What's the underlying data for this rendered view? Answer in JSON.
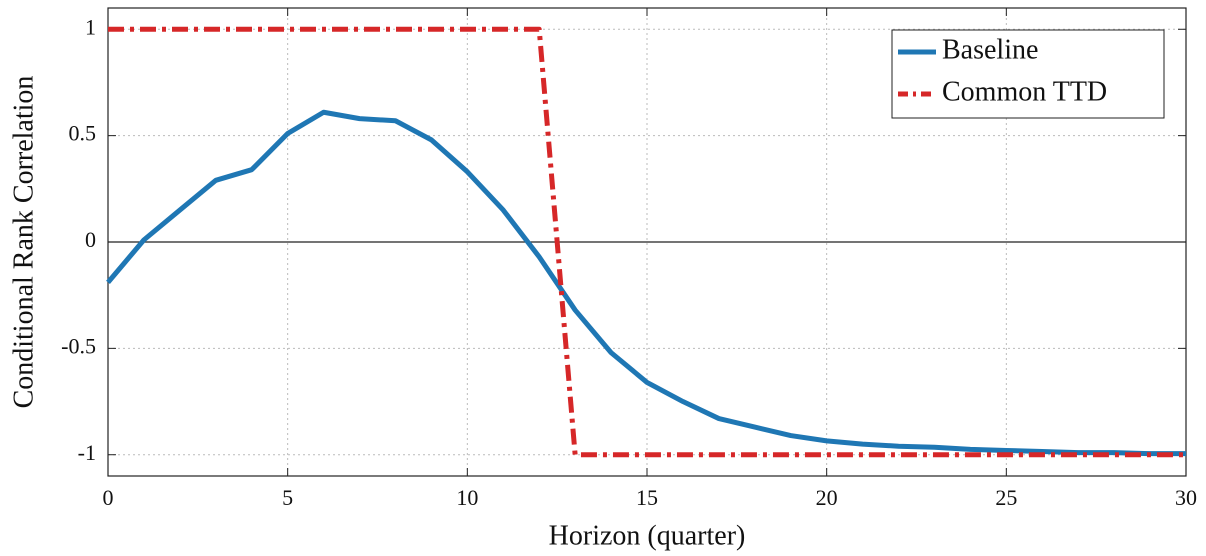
{
  "chart_data": {
    "type": "line",
    "x_label": "Horizon (quarter)",
    "y_label": "Conditional Rank Correlation",
    "x": [
      0,
      1,
      2,
      3,
      4,
      5,
      6,
      7,
      8,
      9,
      10,
      11,
      12,
      13,
      14,
      15,
      16,
      17,
      18,
      19,
      20,
      21,
      22,
      23,
      24,
      25,
      26,
      27,
      28,
      29,
      30
    ],
    "series": [
      {
        "name": "Baseline",
        "color": "#1f77b4",
        "style": "solid",
        "values": [
          -0.19,
          0.01,
          0.15,
          0.29,
          0.34,
          0.51,
          0.61,
          0.58,
          0.57,
          0.48,
          0.33,
          0.15,
          -0.07,
          -0.32,
          -0.52,
          -0.66,
          -0.75,
          -0.83,
          -0.87,
          -0.91,
          -0.935,
          -0.95,
          -0.96,
          -0.965,
          -0.975,
          -0.98,
          -0.985,
          -0.99,
          -0.99,
          -0.995,
          -0.995
        ]
      },
      {
        "name": "Common TTD",
        "color": "#d62728",
        "style": "dashdot",
        "values": [
          1,
          1,
          1,
          1,
          1,
          1,
          1,
          1,
          1,
          1,
          1,
          1,
          1,
          -1,
          -1,
          -1,
          -1,
          -1,
          -1,
          -1,
          -1,
          -1,
          -1,
          -1,
          -1,
          -1,
          -1,
          -1,
          -1,
          -1,
          -1
        ]
      }
    ],
    "xlim": [
      0,
      30
    ],
    "xticks": [
      0,
      5,
      10,
      15,
      20,
      25,
      30
    ],
    "ylim": [
      -1.1,
      1.1
    ],
    "yticks": [
      -1,
      -0.5,
      0,
      0.5,
      1
    ],
    "grid": true,
    "zero_line": true,
    "legend": "upper-right"
  }
}
